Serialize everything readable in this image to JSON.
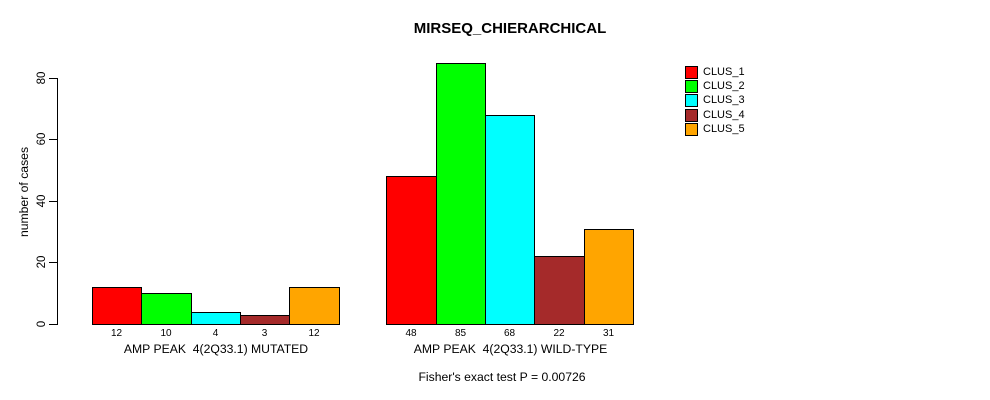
{
  "title": "MIRSEQ_CHIERARCHICAL",
  "ylabel": "number of cases",
  "footer": "Fisher's exact test P = 0.00726",
  "legend": {
    "position": "top-right",
    "entries": [
      {
        "label": "CLUS_1",
        "color": "#FF0000"
      },
      {
        "label": "CLUS_2",
        "color": "#00FF00"
      },
      {
        "label": "CLUS_3",
        "color": "#00FFFF"
      },
      {
        "label": "CLUS_4",
        "color": "#A52A2A"
      },
      {
        "label": "CLUS_5",
        "color": "#FFA500"
      }
    ]
  },
  "chart_data": {
    "type": "bar",
    "grouped": true,
    "title": "MIRSEQ_CHIERARCHICAL",
    "xlabel": "",
    "ylabel": "number of cases",
    "categories": [
      "AMP PEAK  4(2Q33.1) MUTATED",
      "AMP PEAK  4(2Q33.1) WILD-TYPE"
    ],
    "series": [
      {
        "name": "CLUS_1",
        "color": "#FF0000",
        "values": [
          12,
          48
        ]
      },
      {
        "name": "CLUS_2",
        "color": "#00FF00",
        "values": [
          10,
          85
        ]
      },
      {
        "name": "CLUS_3",
        "color": "#00FFFF",
        "values": [
          4,
          68
        ]
      },
      {
        "name": "CLUS_4",
        "color": "#A52A2A",
        "values": [
          3,
          22
        ]
      },
      {
        "name": "CLUS_5",
        "color": "#FFA500",
        "values": [
          12,
          31
        ]
      }
    ],
    "bar_value_labels": true,
    "yticks": [
      0,
      20,
      40,
      60,
      80
    ],
    "ylim": [
      0,
      85
    ],
    "grid": false,
    "legend_position": "top-right",
    "annotation": "Fisher's exact test P = 0.00726",
    "axis_color": "#000000"
  }
}
